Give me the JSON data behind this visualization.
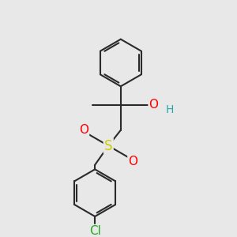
{
  "bg_color": "#e8e8e8",
  "bond_color": "#2a2a2a",
  "bond_width": 1.5,
  "dbo": 0.055,
  "atom_colors": {
    "O": "#ff0000",
    "S": "#cccc00",
    "Cl": "#22aa22",
    "H": "#22aaaa",
    "C": "#2a2a2a"
  },
  "afs": 10,
  "fig_width": 3.0,
  "fig_height": 3.0,
  "dpi": 100
}
